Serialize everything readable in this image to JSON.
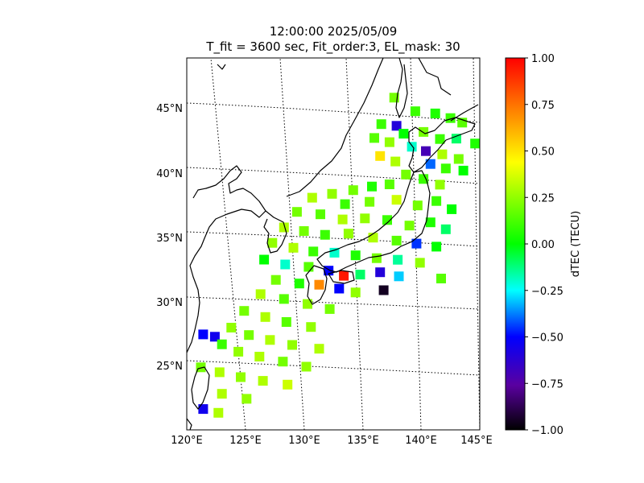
{
  "title_line1": "12:00:00 2025/05/09",
  "title_line2": "T_fit = 3600 sec, Fit_order:3, EL_mask: 30",
  "map": {
    "lon_range": [
      120,
      145
    ],
    "lat_range": [
      20,
      49
    ],
    "lon_ticks": [
      "120°E",
      "125°E",
      "130°E",
      "135°E",
      "140°E",
      "145°E"
    ],
    "lat_ticks": [
      "25°N",
      "30°N",
      "35°N",
      "40°N",
      "45°N"
    ],
    "grid": "dotted",
    "projection": "conic"
  },
  "colorbar": {
    "label": "dTEC (TECU)",
    "range": [
      -1.0,
      1.0
    ],
    "ticks": [
      "1.00",
      "0.75",
      "0.50",
      "0.25",
      "0.00",
      "−0.25",
      "−0.50",
      "−0.75",
      "−1.00"
    ],
    "colormap": [
      "#000000",
      "#5a00a0",
      "#0000ff",
      "#00ffff",
      "#00ff00",
      "#ffff00",
      "#ff8000",
      "#ff0000"
    ]
  },
  "chart_data": {
    "type": "heatmap",
    "title": "12:00:00 2025/05/09\nT_fit = 3600 sec, Fit_order:3, EL_mask: 30",
    "value_label": "dTEC (TECU)",
    "value_range": [
      -1.0,
      1.0
    ],
    "points_lon_lat_value": [
      [
        137.7,
        45.6,
        0.2
      ],
      [
        139.5,
        44.6,
        0.1
      ],
      [
        141.2,
        44.5,
        0.05
      ],
      [
        142.5,
        44.2,
        0.1
      ],
      [
        143.5,
        43.9,
        0.15
      ],
      [
        136.6,
        43.5,
        0.1
      ],
      [
        137.9,
        43.4,
        -0.6
      ],
      [
        138.5,
        42.8,
        0.0
      ],
      [
        140.2,
        43.0,
        0.2
      ],
      [
        141.6,
        42.5,
        0.1
      ],
      [
        143.0,
        42.6,
        -0.1
      ],
      [
        144.6,
        42.3,
        0.05
      ],
      [
        136.0,
        42.4,
        0.15
      ],
      [
        137.3,
        42.1,
        0.25
      ],
      [
        139.2,
        41.8,
        -0.2
      ],
      [
        140.4,
        41.5,
        -0.7
      ],
      [
        141.8,
        41.3,
        0.3
      ],
      [
        143.2,
        41.0,
        0.2
      ],
      [
        136.5,
        41.0,
        0.5
      ],
      [
        137.8,
        40.6,
        0.3
      ],
      [
        140.8,
        40.5,
        -0.4
      ],
      [
        142.1,
        40.2,
        0.1
      ],
      [
        143.6,
        40.1,
        0.0
      ],
      [
        138.7,
        39.6,
        0.2
      ],
      [
        140.2,
        39.3,
        0.1
      ],
      [
        141.6,
        38.9,
        0.25
      ],
      [
        137.3,
        38.8,
        0.15
      ],
      [
        135.8,
        38.6,
        0.05
      ],
      [
        134.2,
        38.3,
        0.2
      ],
      [
        132.4,
        38.0,
        0.25
      ],
      [
        130.7,
        37.7,
        0.3
      ],
      [
        133.5,
        37.2,
        0.1
      ],
      [
        135.6,
        37.4,
        0.2
      ],
      [
        137.9,
        37.6,
        0.35
      ],
      [
        139.7,
        37.2,
        0.2
      ],
      [
        141.3,
        37.6,
        0.1
      ],
      [
        142.6,
        37.0,
        0.0
      ],
      [
        129.4,
        36.6,
        0.2
      ],
      [
        131.4,
        36.4,
        0.15
      ],
      [
        133.3,
        36.0,
        0.3
      ],
      [
        135.2,
        36.1,
        0.25
      ],
      [
        137.1,
        36.0,
        0.1
      ],
      [
        139.0,
        35.6,
        0.2
      ],
      [
        140.8,
        35.9,
        0.05
      ],
      [
        142.1,
        35.4,
        -0.1
      ],
      [
        128.3,
        35.4,
        0.3
      ],
      [
        130.0,
        35.1,
        0.2
      ],
      [
        131.8,
        34.8,
        0.1
      ],
      [
        133.8,
        34.9,
        0.25
      ],
      [
        135.9,
        34.6,
        0.3
      ],
      [
        137.9,
        34.4,
        0.15
      ],
      [
        139.6,
        34.2,
        -0.45
      ],
      [
        141.3,
        34.0,
        0.0
      ],
      [
        127.3,
        34.2,
        0.25
      ],
      [
        129.1,
        33.8,
        0.3
      ],
      [
        130.8,
        33.5,
        0.1
      ],
      [
        132.6,
        33.4,
        -0.2
      ],
      [
        134.4,
        33.2,
        0.05
      ],
      [
        136.2,
        33.0,
        0.2
      ],
      [
        138.0,
        32.9,
        -0.15
      ],
      [
        139.9,
        32.7,
        0.25
      ],
      [
        126.6,
        32.9,
        0.0
      ],
      [
        128.4,
        32.5,
        -0.2
      ],
      [
        130.4,
        32.3,
        0.15
      ],
      [
        132.1,
        32.0,
        -0.5
      ],
      [
        133.4,
        31.6,
        0.95
      ],
      [
        134.8,
        31.7,
        -0.1
      ],
      [
        136.5,
        31.9,
        -0.6
      ],
      [
        138.1,
        31.6,
        -0.3
      ],
      [
        141.7,
        31.5,
        0.15
      ],
      [
        127.6,
        31.3,
        0.2
      ],
      [
        129.6,
        31.0,
        0.05
      ],
      [
        131.3,
        30.9,
        0.7
      ],
      [
        133.0,
        30.6,
        -0.5
      ],
      [
        134.4,
        30.3,
        0.25
      ],
      [
        136.8,
        30.5,
        -0.95
      ],
      [
        126.3,
        30.2,
        0.3
      ],
      [
        128.3,
        29.8,
        0.15
      ],
      [
        130.3,
        29.4,
        0.25
      ],
      [
        132.2,
        29.0,
        0.2
      ],
      [
        124.9,
        28.9,
        0.2
      ],
      [
        126.7,
        28.4,
        0.3
      ],
      [
        128.5,
        28.0,
        0.15
      ],
      [
        130.6,
        27.6,
        0.25
      ],
      [
        123.8,
        27.6,
        0.25
      ],
      [
        125.3,
        27.0,
        0.2
      ],
      [
        127.1,
        26.6,
        0.3
      ],
      [
        129.0,
        26.2,
        0.25
      ],
      [
        131.3,
        25.9,
        0.3
      ],
      [
        121.4,
        27.1,
        -0.5
      ],
      [
        122.4,
        26.9,
        -0.55
      ],
      [
        123.0,
        26.3,
        0.1
      ],
      [
        124.4,
        25.7,
        0.25
      ],
      [
        126.2,
        25.3,
        0.3
      ],
      [
        128.2,
        24.9,
        0.2
      ],
      [
        130.2,
        24.5,
        0.25
      ],
      [
        121.2,
        24.5,
        0.2
      ],
      [
        122.8,
        24.1,
        0.3
      ],
      [
        124.6,
        23.7,
        0.25
      ],
      [
        126.5,
        23.4,
        0.3
      ],
      [
        128.6,
        23.1,
        0.35
      ],
      [
        123.0,
        22.4,
        0.3
      ],
      [
        125.1,
        22.0,
        0.25
      ],
      [
        121.4,
        21.2,
        -0.55
      ],
      [
        122.7,
        20.9,
        0.3
      ]
    ]
  }
}
